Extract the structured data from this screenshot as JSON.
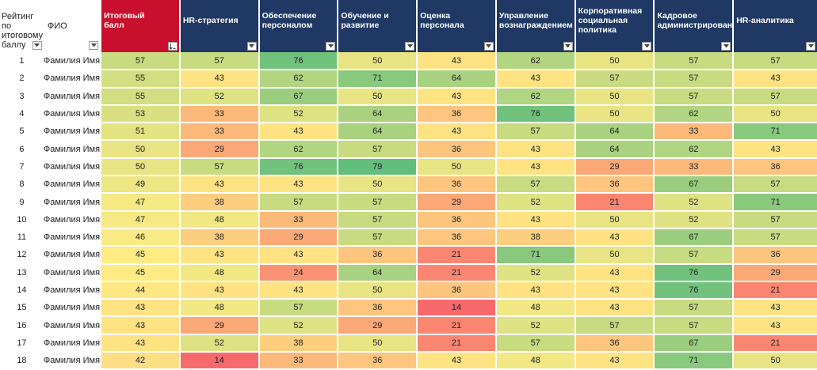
{
  "header": {
    "rank_label": "Рейтинг по итоговому баллу",
    "name_label": "ФИО",
    "columns": [
      {
        "label": "Итоговый балл"
      },
      {
        "label": "HR-стратегия"
      },
      {
        "label": "Обеспечение персоналом"
      },
      {
        "label": "Обучение и развитие"
      },
      {
        "label": "Оценка персонала"
      },
      {
        "label": "Управление вознаграждением"
      },
      {
        "label": "Корпоративная социальная политика"
      },
      {
        "label": "Кадровое администрирование"
      },
      {
        "label": "HR-аналитика"
      }
    ]
  },
  "rows": [
    {
      "rank": "1",
      "name": "Фамилия Имя",
      "scores": [
        57,
        57,
        76,
        50,
        43,
        62,
        50,
        57,
        57
      ]
    },
    {
      "rank": "2",
      "name": "Фамилия Имя",
      "scores": [
        55,
        43,
        62,
        71,
        64,
        43,
        57,
        57,
        43
      ]
    },
    {
      "rank": "3",
      "name": "Фамилия Имя",
      "scores": [
        55,
        52,
        67,
        50,
        43,
        62,
        50,
        57,
        57
      ]
    },
    {
      "rank": "4",
      "name": "Фамилия Имя",
      "scores": [
        53,
        33,
        52,
        64,
        36,
        76,
        50,
        62,
        50
      ]
    },
    {
      "rank": "5",
      "name": "Фамилия Имя",
      "scores": [
        51,
        33,
        43,
        64,
        43,
        57,
        64,
        33,
        71
      ]
    },
    {
      "rank": "6",
      "name": "Фамилия Имя",
      "scores": [
        50,
        29,
        62,
        57,
        36,
        43,
        64,
        62,
        43
      ]
    },
    {
      "rank": "7",
      "name": "Фамилия Имя",
      "scores": [
        50,
        57,
        76,
        79,
        50,
        43,
        29,
        33,
        36
      ]
    },
    {
      "rank": "8",
      "name": "Фамилия Имя",
      "scores": [
        49,
        43,
        43,
        50,
        36,
        57,
        36,
        67,
        57
      ]
    },
    {
      "rank": "9",
      "name": "Фамилия Имя",
      "scores": [
        47,
        38,
        57,
        57,
        29,
        52,
        21,
        52,
        71
      ]
    },
    {
      "rank": "10",
      "name": "Фамилия Имя",
      "scores": [
        47,
        48,
        33,
        57,
        36,
        43,
        50,
        52,
        57
      ]
    },
    {
      "rank": "11",
      "name": "Фамилия Имя",
      "scores": [
        46,
        38,
        29,
        57,
        36,
        38,
        43,
        67,
        57
      ]
    },
    {
      "rank": "12",
      "name": "Фамилия Имя",
      "scores": [
        45,
        43,
        43,
        36,
        21,
        71,
        50,
        57,
        36
      ]
    },
    {
      "rank": "13",
      "name": "Фамилия Имя",
      "scores": [
        45,
        48,
        24,
        64,
        21,
        52,
        43,
        76,
        29
      ]
    },
    {
      "rank": "14",
      "name": "Фамилия Имя",
      "scores": [
        44,
        43,
        43,
        50,
        36,
        43,
        43,
        76,
        21
      ]
    },
    {
      "rank": "15",
      "name": "Фамилия Имя",
      "scores": [
        43,
        48,
        57,
        36,
        14,
        48,
        43,
        57,
        43
      ]
    },
    {
      "rank": "16",
      "name": "Фамилия Имя",
      "scores": [
        43,
        29,
        52,
        29,
        21,
        52,
        57,
        57,
        43
      ]
    },
    {
      "rank": "17",
      "name": "Фамилия Имя",
      "scores": [
        43,
        52,
        38,
        50,
        21,
        57,
        36,
        67,
        21
      ]
    },
    {
      "rank": "18",
      "name": "Фамилия Имя",
      "scores": [
        42,
        14,
        33,
        36,
        43,
        48,
        43,
        71,
        50
      ]
    }
  ],
  "colors": {
    "header_bg": "#1f3864",
    "total_header_bg": "#c8102e",
    "scale_low": "#f8696b",
    "scale_mid": "#ffeb84",
    "scale_high": "#63be7b"
  }
}
